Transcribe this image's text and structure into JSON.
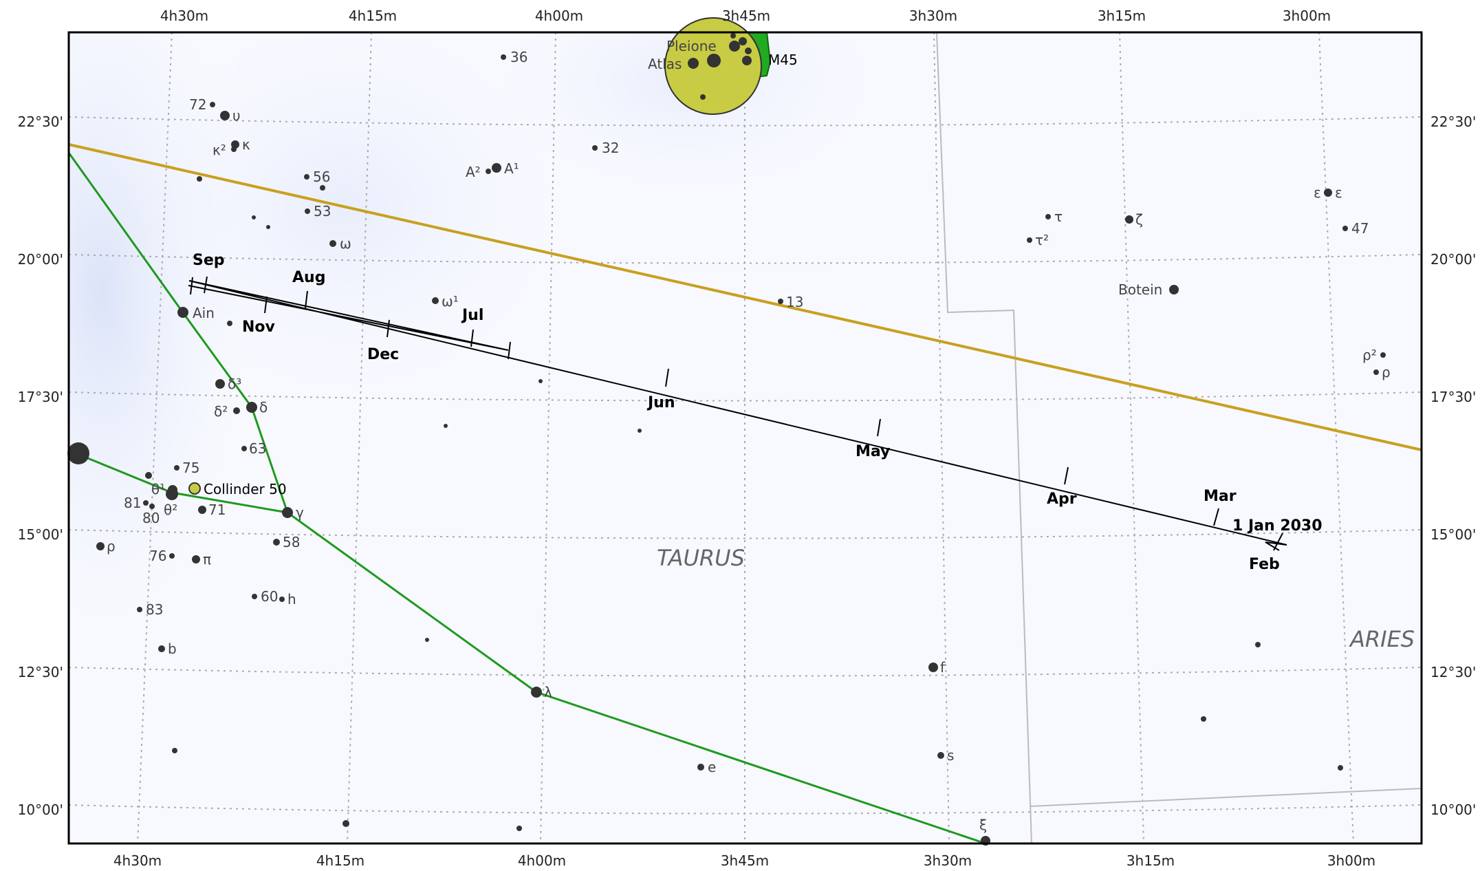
{
  "map": {
    "top_ra_labels": [
      "4h30m",
      "4h15m",
      "4h00m",
      "3h45m",
      "3h30m",
      "3h15m",
      "3h00m"
    ],
    "bottom_ra_labels": [
      "4h30m",
      "4h15m",
      "4h00m",
      "3h45m",
      "3h30m",
      "3h15m",
      "3h00m"
    ],
    "dec_labels_left": [
      "22°30'",
      "20°00'",
      "17°30'",
      "15°00'",
      "12°30'",
      "10°00'"
    ],
    "dec_labels_right": [
      "22°30'",
      "20°00'",
      "17°30'",
      "15°00'",
      "12°30'",
      "10°00'"
    ],
    "constellations": {
      "taurus": "TAURUS",
      "aries": "ARIES"
    },
    "cluster": {
      "m45": "M45",
      "pleione": "Pleione",
      "atlas": "Atlas",
      "collinder": "Collinder 50"
    },
    "path": {
      "start_label": "1 Jan 2030"
    },
    "months": {
      "feb": "Feb",
      "mar": "Mar",
      "apr": "Apr",
      "may": "May",
      "jun": "Jun",
      "jul": "Jul",
      "aug": "Aug",
      "sep": "Sep",
      "nov": "Nov",
      "dec": "Dec"
    },
    "stars": {
      "s36": "36",
      "s72": "72",
      "upsilon": "υ",
      "kappa2": "κ²",
      "kappa": "κ",
      "s56": "56",
      "s53": "53",
      "omega": "ω",
      "s32": "32",
      "A2": "A²",
      "A1": "A¹",
      "omega1": "ω¹",
      "s13": "13",
      "tau": "τ",
      "tau2": "τ²",
      "zeta": "ζ",
      "epsilon_a": "ε",
      "epsilon_b": "ε",
      "s47": "47",
      "botein": "Botein",
      "rho2": "ρ²",
      "rho": "ρ",
      "ain": "Ain",
      "delta3": "δ³",
      "delta2": "δ²",
      "delta": "δ",
      "s63": "63",
      "s75": "75",
      "theta1": "θ¹",
      "theta2": "θ²",
      "s81": "81",
      "s80": "80",
      "s71": "71",
      "gamma": "γ",
      "rho_left": "ρ",
      "s76": "76",
      "pi": "π",
      "s58": "58",
      "s60": "60",
      "h": "h",
      "s83": "83",
      "b": "b",
      "lambda": "λ",
      "f": "f",
      "e": "e",
      "s": "s",
      "xi": "ξ"
    },
    "colors": {
      "ecliptic": "#c8a01e",
      "constellation_lines": "#1e9a1e",
      "boundary": "#bbbbbb",
      "grid": "#aaaaaa",
      "path": "#000000",
      "pleiades_fill": "#c8cc44",
      "pleiades_green": "#22aa22"
    }
  }
}
